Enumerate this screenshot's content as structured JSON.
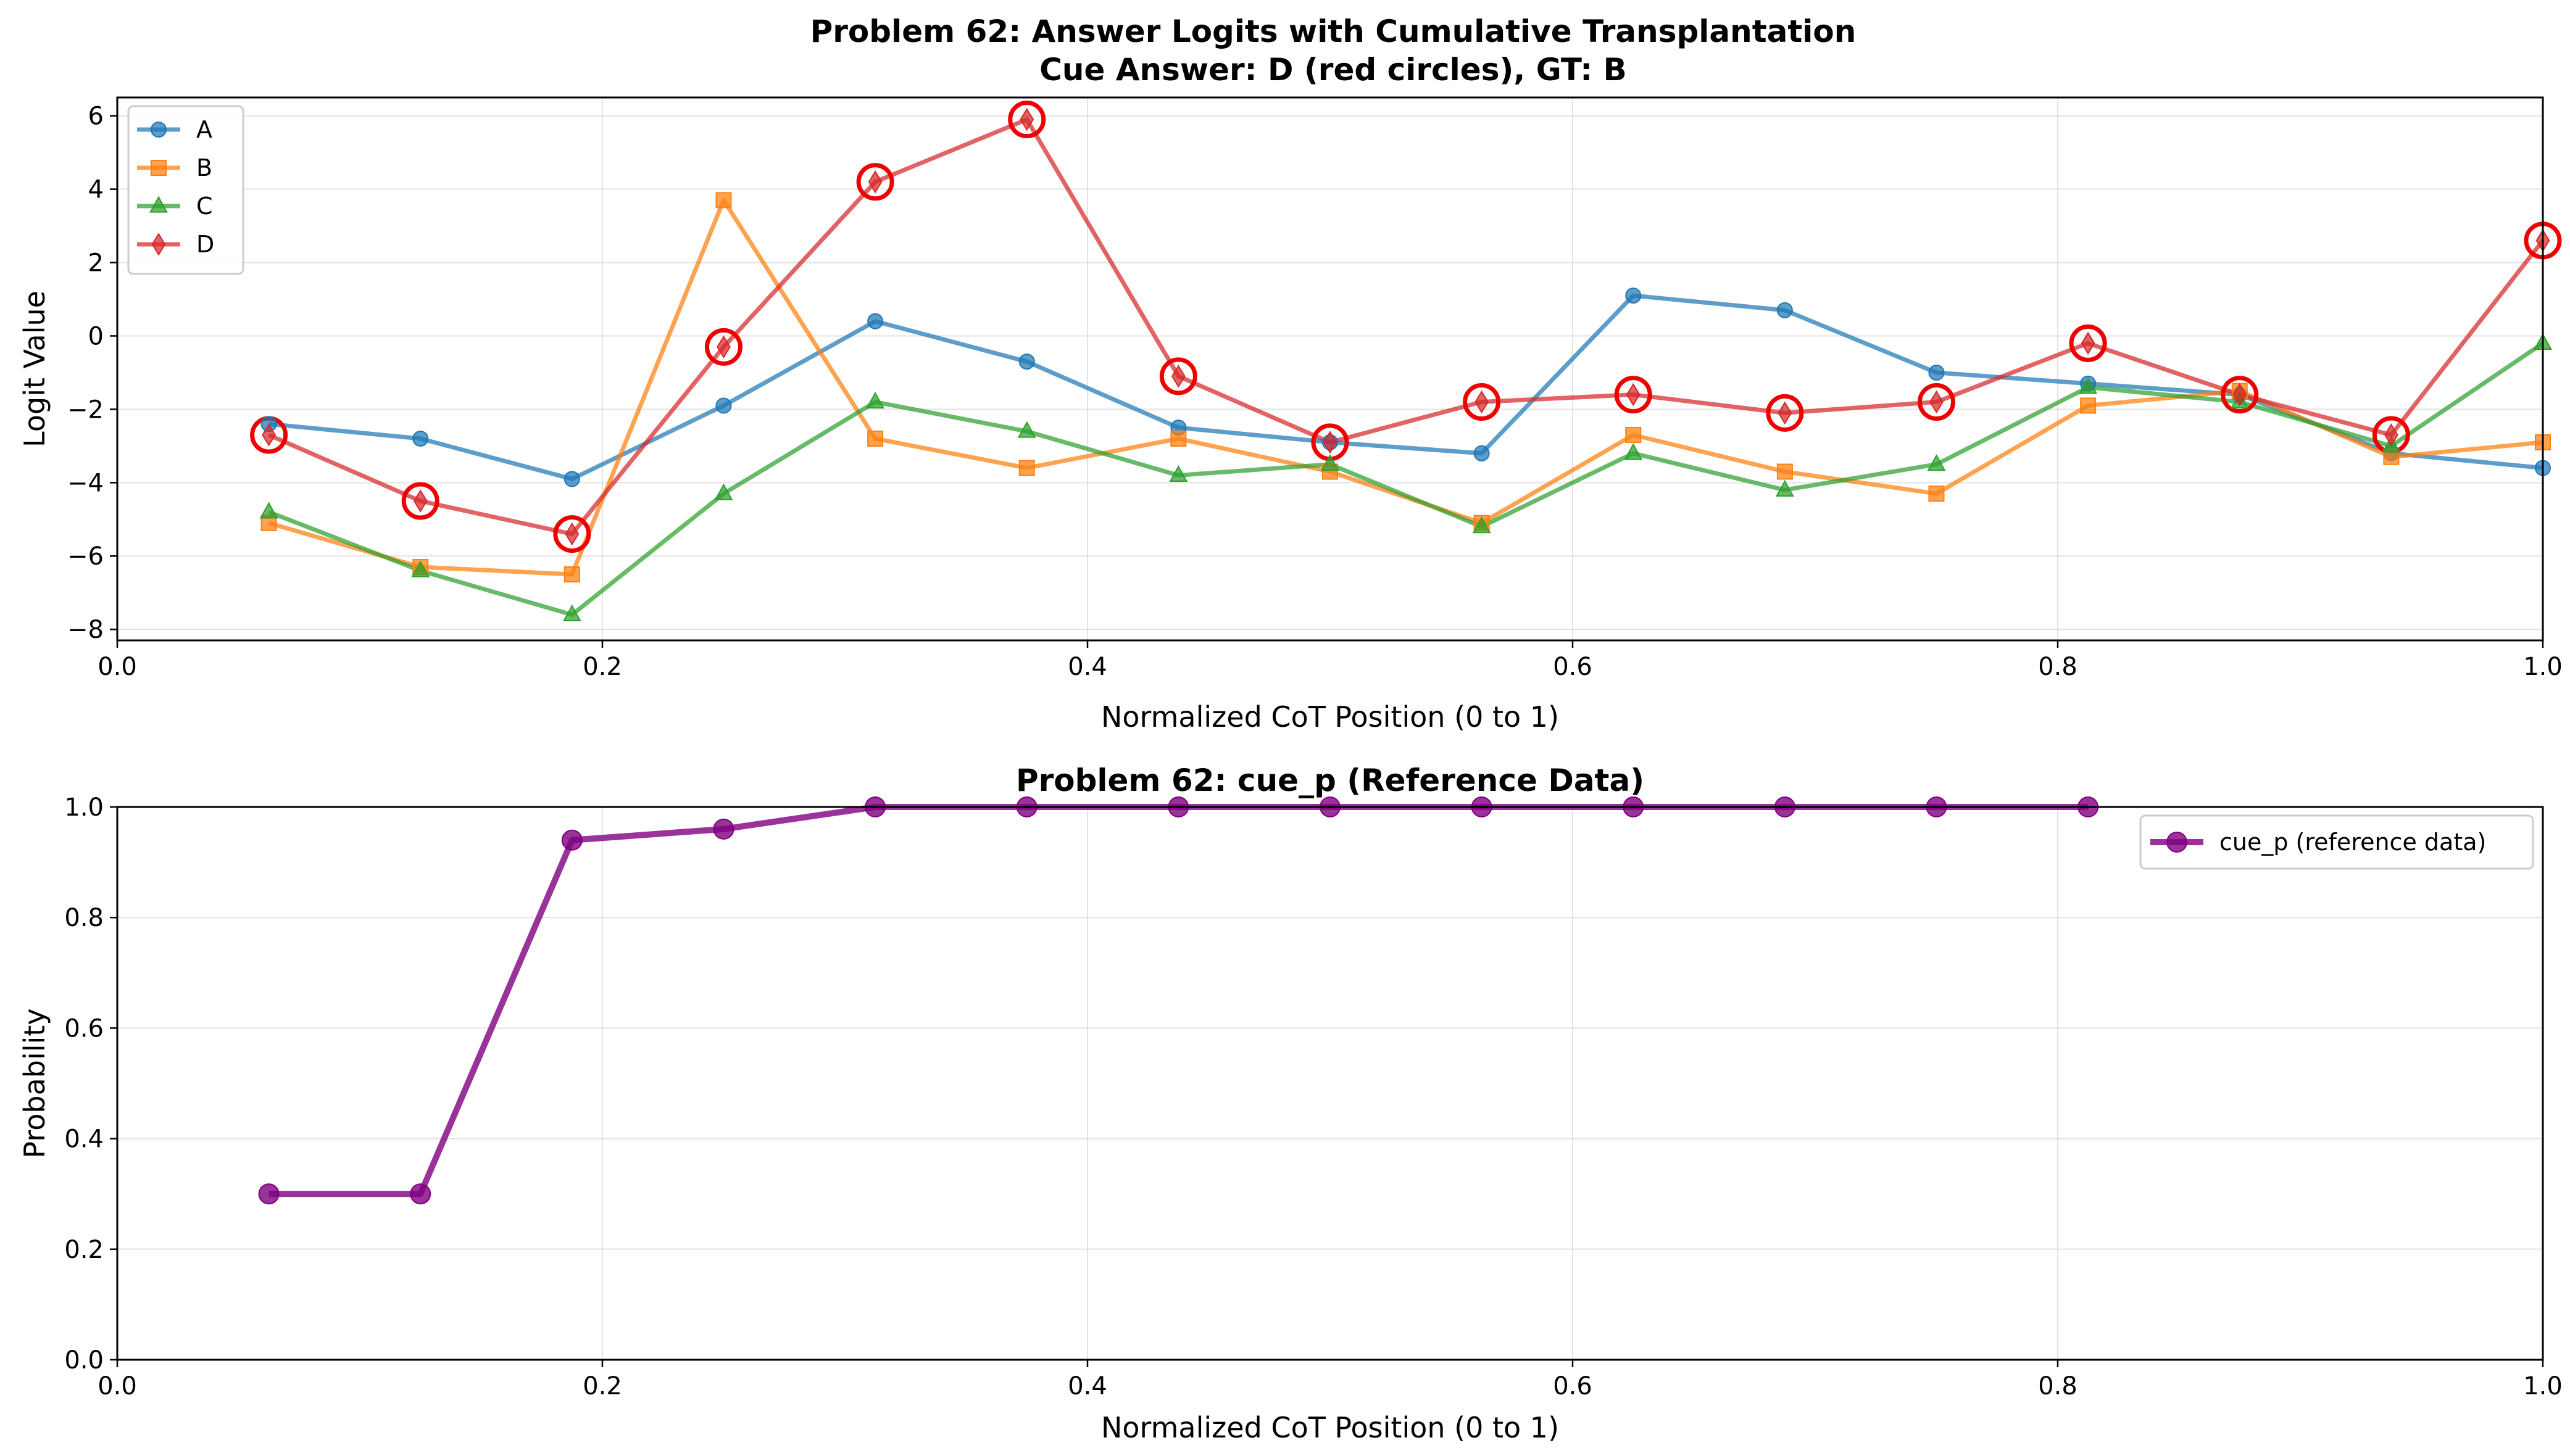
{
  "chart_data": [
    {
      "type": "line",
      "title": "Problem 62: Answer Logits with Cumulative Transplantation",
      "subtitle": "Cue Answer: D (red circles), GT: B",
      "xlabel": "Normalized CoT Position (0 to 1)",
      "ylabel": "Logit Value",
      "xlim": [
        0,
        1
      ],
      "ylim": [
        -8.3,
        6.5
      ],
      "xticks": [
        0,
        0.2,
        0.4,
        0.6,
        0.8,
        1.0
      ],
      "xtick_labels": [
        "0.0",
        "0.2",
        "0.4",
        "0.6",
        "0.8",
        "1.0"
      ],
      "yticks": [
        -8,
        -6,
        -4,
        -2,
        0,
        2,
        4,
        6
      ],
      "ytick_labels": [
        "−8",
        "−6",
        "−4",
        "−2",
        "0",
        "2",
        "4",
        "6"
      ],
      "grid": true,
      "legend_position": "top-left",
      "x": [
        0.0625,
        0.125,
        0.1875,
        0.25,
        0.3125,
        0.375,
        0.4375,
        0.5,
        0.5625,
        0.625,
        0.6875,
        0.75,
        0.8125,
        0.875,
        0.9375,
        1.0
      ],
      "series": [
        {
          "name": "A",
          "color": "#1f77b4",
          "marker": "circle",
          "values": [
            -2.4,
            -2.8,
            -3.9,
            -1.9,
            0.4,
            -0.7,
            -2.5,
            -2.9,
            -3.2,
            1.1,
            0.7,
            -1.0,
            -1.3,
            -1.6,
            -3.2,
            -3.6
          ]
        },
        {
          "name": "B",
          "color": "#ff7f0e",
          "marker": "square",
          "values": [
            -5.1,
            -6.3,
            -6.5,
            3.7,
            -2.8,
            -3.6,
            -2.8,
            -3.7,
            -5.1,
            -2.7,
            -3.7,
            -4.3,
            -1.9,
            -1.5,
            -3.3,
            -2.9
          ]
        },
        {
          "name": "C",
          "color": "#2ca02c",
          "marker": "triangle",
          "values": [
            -4.8,
            -6.4,
            -7.6,
            -4.3,
            -1.8,
            -2.6,
            -3.8,
            -3.5,
            -5.2,
            -3.2,
            -4.2,
            -3.5,
            -1.4,
            -1.8,
            -3.0,
            -0.2
          ]
        },
        {
          "name": "D",
          "color": "#d62728",
          "marker": "diamond",
          "values": [
            -2.7,
            -4.5,
            -5.4,
            -0.3,
            4.2,
            5.9,
            -1.1,
            -2.9,
            -1.8,
            -1.6,
            -2.1,
            -1.8,
            -0.2,
            -1.6,
            -2.7,
            2.6
          ]
        }
      ],
      "cue_highlight": {
        "series": "D",
        "marker": "red circle",
        "color": "#ee0000"
      }
    },
    {
      "type": "line",
      "title": "Problem 62: cue_p (Reference Data)",
      "xlabel": "Normalized CoT Position (0 to 1)",
      "ylabel": "Probability",
      "xlim": [
        0,
        1
      ],
      "ylim": [
        0,
        1
      ],
      "xticks": [
        0,
        0.2,
        0.4,
        0.6,
        0.8,
        1.0
      ],
      "xtick_labels": [
        "0.0",
        "0.2",
        "0.4",
        "0.6",
        "0.8",
        "1.0"
      ],
      "yticks": [
        0,
        0.2,
        0.4,
        0.6,
        0.8,
        1.0
      ],
      "ytick_labels": [
        "0.0",
        "0.2",
        "0.4",
        "0.6",
        "0.8",
        "1.0"
      ],
      "grid": true,
      "legend_position": "top-right",
      "x": [
        0.0625,
        0.125,
        0.1875,
        0.25,
        0.3125,
        0.375,
        0.4375,
        0.5,
        0.5625,
        0.625,
        0.6875,
        0.75,
        0.8125
      ],
      "series": [
        {
          "name": "cue_p (reference data)",
          "color": "#800080",
          "marker": "circle",
          "values": [
            0.3,
            0.3,
            0.94,
            0.96,
            1.0,
            1.0,
            1.0,
            1.0,
            1.0,
            1.0,
            1.0,
            1.0,
            1.0
          ]
        }
      ]
    }
  ]
}
